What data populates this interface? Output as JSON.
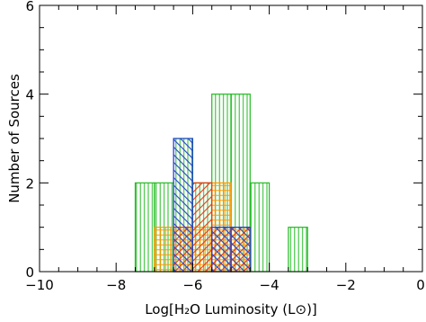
{
  "chart_data": {
    "type": "bar",
    "subtype": "overlaid-histogram",
    "xlabel": "Log[H₂O Luminosity (L⊙)]",
    "ylabel": "Number of Sources",
    "xlim": [
      -10,
      0
    ],
    "ylim": [
      0,
      6
    ],
    "x_ticks": [
      -10,
      -8,
      -6,
      -4,
      -2,
      0
    ],
    "x_tick_labels": [
      "−10",
      "−8",
      "−6",
      "−4",
      "−2",
      "0"
    ],
    "y_ticks": [
      0,
      2,
      4,
      6
    ],
    "y_tick_labels": [
      "0",
      "2",
      "4",
      "6"
    ],
    "bin_width": 0.5,
    "grid": false,
    "series": [
      {
        "color": "#22bb22",
        "hatch": "vertical",
        "bins": [
          {
            "x0": -7.5,
            "x1": -7.0,
            "count": 2
          },
          {
            "x0": -7.0,
            "x1": -6.5,
            "count": 2
          },
          {
            "x0": -6.5,
            "x1": -6.0,
            "count": 3
          },
          {
            "x0": -6.0,
            "x1": -5.5,
            "count": 2
          },
          {
            "x0": -5.5,
            "x1": -5.0,
            "count": 4
          },
          {
            "x0": -5.0,
            "x1": -4.5,
            "count": 4
          },
          {
            "x0": -4.5,
            "x1": -4.0,
            "count": 2
          },
          {
            "x0": -3.5,
            "x1": -3.0,
            "count": 1
          }
        ]
      },
      {
        "color": "#ff9900",
        "hatch": "grid",
        "bins": [
          {
            "x0": -7.0,
            "x1": -6.5,
            "count": 1
          },
          {
            "x0": -6.5,
            "x1": -6.0,
            "count": 1
          },
          {
            "x0": -6.0,
            "x1": -5.5,
            "count": 1
          },
          {
            "x0": -5.5,
            "x1": -5.0,
            "count": 2
          },
          {
            "x0": -5.0,
            "x1": -4.5,
            "count": 1
          }
        ]
      },
      {
        "color": "#ee3311",
        "hatch": "diagonal-down",
        "bins": [
          {
            "x0": -6.5,
            "x1": -6.0,
            "count": 1
          },
          {
            "x0": -6.0,
            "x1": -5.5,
            "count": 2
          },
          {
            "x0": -5.5,
            "x1": -5.0,
            "count": 1
          },
          {
            "x0": -5.0,
            "x1": -4.5,
            "count": 1
          }
        ]
      },
      {
        "color": "#2244cc",
        "hatch": "diagonal-up",
        "bins": [
          {
            "x0": -6.5,
            "x1": -6.0,
            "count": 3
          },
          {
            "x0": -5.5,
            "x1": -5.0,
            "count": 1
          },
          {
            "x0": -5.0,
            "x1": -4.5,
            "count": 1
          }
        ]
      }
    ]
  }
}
